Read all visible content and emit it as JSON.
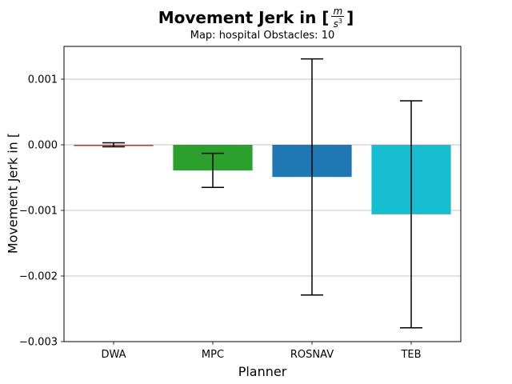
{
  "chart_data": {
    "type": "bar",
    "title_text": "Movement Jerk in [",
    "title_unit_num": "m",
    "title_unit_den": "s",
    "title_unit_exp": "3",
    "title_close": "]",
    "subtitle": "Map: hospital Obstacles: 10",
    "xlabel": "Planner",
    "ylabel_text": "Movement Jerk in [",
    "categories": [
      "DWA",
      "MPC",
      "ROSNAV",
      "TEB"
    ],
    "values": [
      0.0,
      -0.00039,
      -0.00049,
      -0.00106
    ],
    "error": [
      3e-05,
      0.00026,
      0.0018,
      0.00173
    ],
    "colors": [
      "#d62728",
      "#2ca02c",
      "#1f77b4",
      "#17becf"
    ],
    "ylim": [
      -0.003,
      0.0015
    ],
    "yticks": [
      0.001,
      0.0,
      -0.001,
      -0.002,
      -0.003
    ],
    "ytick_labels": [
      "0.001",
      "0.000",
      "−0.001",
      "−0.002",
      "−0.003"
    ],
    "grid": "horizontal"
  }
}
